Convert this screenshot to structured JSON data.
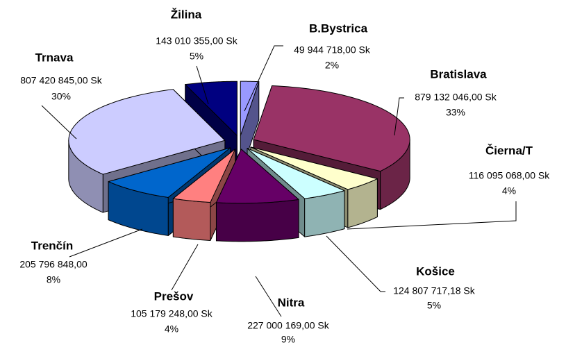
{
  "chart_data": {
    "type": "pie3d",
    "categories": [
      "B.Bystrica",
      "Bratislava",
      "Čierna/T",
      "Košice",
      "Nitra",
      "Prešov",
      "Trenčín",
      "Trnava",
      "Žilina"
    ],
    "values": [
      49944718,
      879132046,
      116095068,
      124807717.18,
      227000169,
      105179248,
      205796848,
      807420845,
      143010355
    ],
    "value_labels": [
      "49 944 718,00 Sk",
      "879 132 046,00 Sk",
      "116 095 068,00 Sk",
      "124 807 717,18 Sk",
      "227 000 169,00 Sk",
      "105 179 248,00 Sk",
      "205 796 848,00",
      "807 420 845,00 Sk",
      "143 010 355,00 Sk"
    ],
    "percent_labels": [
      "2%",
      "33%",
      "4%",
      "5%",
      "9%",
      "4%",
      "8%",
      "30%",
      "5%"
    ],
    "colors": [
      "#9999ff",
      "#993366",
      "#ffffcc",
      "#ccffff",
      "#660066",
      "#ff8080",
      "#0066cc",
      "#ccccff",
      "#000080"
    ]
  }
}
